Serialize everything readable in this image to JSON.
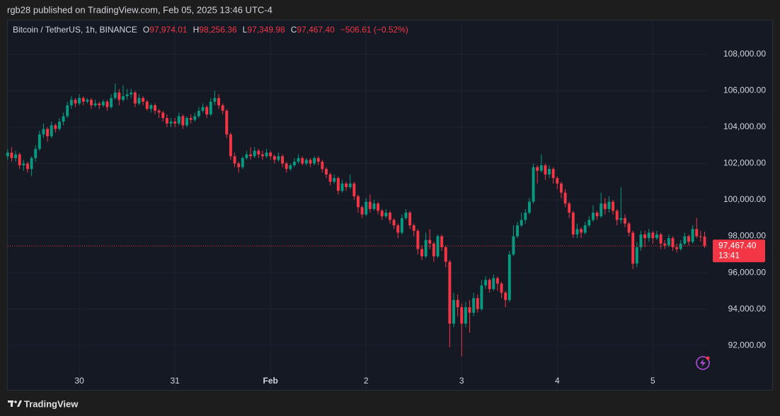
{
  "header": {
    "text": "rgb28 published on TradingView.com, Feb 05, 2025 13:46 UTC-4"
  },
  "footer": {
    "brand": "TradingView"
  },
  "chart_data": {
    "type": "candlestick",
    "title": "Bitcoin / TetherUS, 1h, BINANCE",
    "ohlc_legend": [
      {
        "key": "O",
        "value": "97,974.01"
      },
      {
        "key": "H",
        "value": "98,256.36"
      },
      {
        "key": "L",
        "value": "97,349.98"
      },
      {
        "key": "C",
        "value": "97,467.40"
      }
    ],
    "change": "−506.61 (−0.52%)",
    "last_price_label": "97,467.40",
    "countdown": "13:41",
    "up_color": "#089981",
    "down_color": "#f23645",
    "grid": true,
    "ylim": [
      90530,
      109900
    ],
    "yticks": [
      {
        "value": 92000,
        "label": "92,000.00"
      },
      {
        "value": 94000,
        "label": "94,000.00"
      },
      {
        "value": 96000,
        "label": "96,000.00"
      },
      {
        "value": 98000,
        "label": "98,000.00"
      },
      {
        "value": 100000,
        "label": "100,000.00"
      },
      {
        "value": 102000,
        "label": "102,000.00"
      },
      {
        "value": 104000,
        "label": "104,000.00"
      },
      {
        "value": 106000,
        "label": "106,000.00"
      },
      {
        "value": 108000,
        "label": "108,000.00"
      }
    ],
    "categories": [
      null,
      null,
      null,
      null,
      null,
      null,
      null,
      null,
      null,
      null,
      null,
      null,
      null,
      null,
      null,
      null,
      null,
      null,
      "30",
      null,
      null,
      null,
      null,
      null,
      null,
      null,
      null,
      null,
      null,
      null,
      null,
      null,
      null,
      null,
      null,
      null,
      null,
      null,
      null,
      null,
      null,
      null,
      "31",
      null,
      null,
      null,
      null,
      null,
      null,
      null,
      null,
      null,
      null,
      null,
      null,
      null,
      null,
      null,
      null,
      null,
      null,
      null,
      null,
      null,
      null,
      null,
      "Feb",
      null,
      null,
      null,
      null,
      null,
      null,
      null,
      null,
      null,
      null,
      null,
      null,
      null,
      null,
      null,
      null,
      null,
      null,
      null,
      null,
      null,
      null,
      null,
      "2",
      null,
      null,
      null,
      null,
      null,
      null,
      null,
      null,
      null,
      null,
      null,
      null,
      null,
      null,
      null,
      null,
      null,
      null,
      null,
      null,
      null,
      null,
      null,
      "3",
      null,
      null,
      null,
      null,
      null,
      null,
      null,
      null,
      null,
      null,
      null,
      null,
      null,
      null,
      null,
      null,
      null,
      null,
      null,
      null,
      null,
      null,
      null,
      "4",
      null,
      null,
      null,
      null,
      null,
      null,
      null,
      null,
      null,
      null,
      null,
      null,
      null,
      null,
      null,
      null,
      null,
      null,
      null,
      null,
      null,
      null,
      null,
      "5",
      null,
      null,
      null,
      null,
      null,
      null,
      null,
      null,
      null,
      null,
      null,
      null,
      null
    ],
    "open": [
      102400,
      102600,
      102300,
      102500,
      101900,
      102000,
      101700,
      102300,
      102800,
      103600,
      103900,
      103500,
      104100,
      103900,
      104300,
      104600,
      105200,
      105500,
      105300,
      105600,
      105400,
      105500,
      105200,
      105300,
      105200,
      105400,
      105100,
      105600,
      105900,
      105500,
      105700,
      105800,
      105900,
      105300,
      105600,
      105400,
      105000,
      105200,
      104900,
      104800,
      104500,
      104200,
      104300,
      104200,
      104600,
      104100,
      104500,
      104400,
      104600,
      104900,
      105100,
      104700,
      105400,
      105600,
      105200,
      104900,
      103600,
      102400,
      102000,
      101800,
      102300,
      102500,
      102400,
      102700,
      102500,
      102400,
      102600,
      102400,
      102200,
      102400,
      102000,
      101700,
      101900,
      102100,
      102300,
      102000,
      102200,
      102000,
      102300,
      102100,
      101700,
      101400,
      101000,
      101200,
      100500,
      100900,
      100700,
      100900,
      100200,
      99600,
      99200,
      99900,
      99500,
      99800,
      99400,
      99100,
      99300,
      98900,
      98600,
      98200,
      99000,
      99300,
      98600,
      98300,
      97300,
      96900,
      97800,
      97600,
      96900,
      98000,
      97400,
      96600,
      93200,
      94500,
      94100,
      93200,
      94100,
      93800,
      94600,
      94000,
      95300,
      95600,
      95100,
      95700,
      95400,
      94900,
      94500,
      97000,
      98000,
      98600,
      98900,
      99300,
      99900,
      101800,
      101600,
      101900,
      101400,
      101700,
      101200,
      100900,
      100400,
      99800,
      99300,
      98100,
      98400,
      98200,
      98600,
      98900,
      99300,
      99100,
      99800,
      99500,
      99900,
      99400,
      98900,
      99000,
      98700,
      98200,
      96500,
      97400,
      98100,
      97900,
      98200,
      97900,
      98100,
      97600,
      97500,
      97900,
      97400,
      97300,
      97600,
      98000,
      97700,
      98400,
      98000,
      97974.01
    ],
    "high": [
      102800,
      102900,
      102700,
      102600,
      102200,
      102100,
      102400,
      103000,
      103800,
      104200,
      104000,
      104300,
      104200,
      104500,
      104800,
      105400,
      105700,
      105600,
      105800,
      105700,
      105600,
      105600,
      105500,
      105400,
      105500,
      105500,
      105800,
      106400,
      106100,
      106300,
      106100,
      106100,
      106000,
      105800,
      105700,
      105500,
      105300,
      105300,
      105000,
      104900,
      104700,
      104500,
      104500,
      104800,
      104700,
      104600,
      104700,
      104800,
      105100,
      105300,
      105200,
      105600,
      106000,
      105800,
      105300,
      105000,
      103700,
      102600,
      102100,
      102400,
      102700,
      102900,
      102900,
      102800,
      102700,
      102800,
      102700,
      102500,
      102600,
      102500,
      102100,
      102000,
      102300,
      102500,
      102400,
      102300,
      102300,
      102400,
      102400,
      102200,
      101800,
      101500,
      101400,
      101300,
      101100,
      101000,
      101400,
      101000,
      100300,
      99700,
      100100,
      100300,
      100000,
      99900,
      99500,
      99500,
      99400,
      99000,
      98700,
      99200,
      99500,
      99400,
      98700,
      98400,
      97500,
      98200,
      98400,
      97700,
      98100,
      98100,
      97500,
      96700,
      94900,
      94800,
      94300,
      94400,
      94500,
      94900,
      94800,
      95600,
      95800,
      95700,
      95900,
      95800,
      95500,
      95000,
      97200,
      98600,
      98800,
      99300,
      99500,
      100100,
      102000,
      101900,
      102500,
      102000,
      101900,
      101800,
      101300,
      101000,
      100600,
      99900,
      99400,
      98700,
      98500,
      98800,
      99100,
      99700,
      99400,
      100400,
      100100,
      100200,
      100000,
      99500,
      100700,
      99200,
      98800,
      98300,
      97700,
      98300,
      98300,
      98400,
      98300,
      98300,
      98200,
      97800,
      98100,
      98000,
      97600,
      97800,
      98200,
      98100,
      98600,
      99000,
      98300,
      98256.36
    ],
    "low": [
      102200,
      102100,
      102100,
      101700,
      101600,
      101500,
      101300,
      102100,
      102700,
      103400,
      103200,
      103400,
      103700,
      103800,
      104100,
      104500,
      105000,
      105100,
      105200,
      105200,
      105300,
      105000,
      105100,
      105000,
      105100,
      104900,
      105000,
      105500,
      105200,
      105400,
      105500,
      105600,
      105100,
      105200,
      105200,
      104900,
      104800,
      104700,
      104500,
      104300,
      104000,
      104000,
      104000,
      104100,
      103900,
      104000,
      104200,
      104300,
      104500,
      104800,
      104500,
      104600,
      105200,
      105000,
      104700,
      103400,
      102200,
      101800,
      101500,
      101700,
      102200,
      102200,
      102300,
      102300,
      102200,
      102300,
      102200,
      102000,
      102100,
      101800,
      101500,
      101600,
      101800,
      102000,
      101900,
      101900,
      101800,
      101900,
      101900,
      101500,
      101200,
      100800,
      100900,
      100300,
      100400,
      100500,
      100600,
      100000,
      99300,
      99000,
      99100,
      99300,
      99400,
      99200,
      98900,
      99000,
      98700,
      98400,
      97900,
      98100,
      98900,
      98400,
      98000,
      97000,
      96700,
      96800,
      97300,
      96600,
      96800,
      97200,
      96300,
      91900,
      93000,
      93600,
      91400,
      93000,
      92700,
      93600,
      93800,
      93900,
      95100,
      94900,
      95000,
      95000,
      94600,
      94100,
      94400,
      96900,
      97900,
      98500,
      98700,
      99200,
      99800,
      100900,
      101500,
      101100,
      101200,
      100900,
      100600,
      100100,
      99600,
      99000,
      97900,
      97900,
      97900,
      98100,
      98500,
      98800,
      98900,
      99000,
      99200,
      99300,
      99200,
      98600,
      98700,
      98500,
      98000,
      96200,
      96300,
      97200,
      97400,
      97700,
      97600,
      97800,
      97300,
      97300,
      97400,
      97200,
      97100,
      97200,
      97500,
      97500,
      97600,
      97900,
      97700,
      97349.98
    ],
    "close": [
      102600,
      102300,
      102500,
      101900,
      102000,
      101700,
      102300,
      102800,
      103600,
      103900,
      103500,
      104100,
      103900,
      104300,
      104600,
      105200,
      105500,
      105300,
      105600,
      105400,
      105500,
      105200,
      105300,
      105200,
      105400,
      105100,
      105600,
      105900,
      105500,
      105700,
      105800,
      105900,
      105300,
      105600,
      105400,
      105000,
      105200,
      104900,
      104800,
      104500,
      104200,
      104300,
      104200,
      104600,
      104100,
      104500,
      104400,
      104600,
      104900,
      105100,
      104700,
      105400,
      105600,
      105200,
      104900,
      103600,
      102400,
      102000,
      101800,
      102300,
      102500,
      102400,
      102700,
      102500,
      102400,
      102600,
      102400,
      102200,
      102400,
      102000,
      101700,
      101900,
      102100,
      102300,
      102000,
      102200,
      102000,
      102300,
      102100,
      101700,
      101400,
      101000,
      101200,
      100500,
      100900,
      100700,
      100900,
      100200,
      99600,
      99200,
      99900,
      99500,
      99800,
      99400,
      99100,
      99300,
      98900,
      98600,
      98200,
      99000,
      99300,
      98600,
      98300,
      97300,
      96900,
      97800,
      97600,
      96900,
      98000,
      97400,
      96600,
      93200,
      94500,
      94100,
      93200,
      94100,
      93800,
      94600,
      94000,
      95300,
      95600,
      95100,
      95700,
      95400,
      94900,
      94500,
      97000,
      98000,
      98600,
      98900,
      99300,
      99900,
      101800,
      101600,
      101900,
      101400,
      101700,
      101200,
      100900,
      100400,
      99800,
      99300,
      98100,
      98400,
      98200,
      98600,
      98900,
      99300,
      99100,
      99800,
      99500,
      99900,
      99400,
      98900,
      99000,
      98700,
      98200,
      96500,
      97400,
      98100,
      97900,
      98200,
      97900,
      98100,
      97600,
      97500,
      97900,
      97400,
      97300,
      97600,
      98000,
      97700,
      98400,
      98000,
      97974.01,
      97467.4
    ]
  }
}
